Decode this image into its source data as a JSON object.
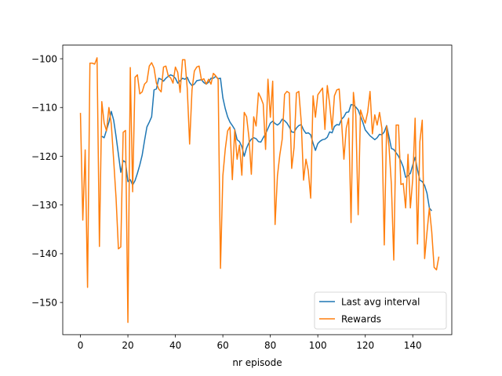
{
  "chart_data": {
    "type": "line",
    "title": "",
    "xlabel": "nr episode",
    "ylabel": "",
    "xlim": [
      -7.45,
      156.45
    ],
    "ylim": [
      -156.6,
      -97.2
    ],
    "xticks": [
      0,
      20,
      40,
      60,
      80,
      100,
      120,
      140
    ],
    "yticks": [
      -150,
      -140,
      -130,
      -120,
      -110,
      -100
    ],
    "grid": false,
    "legend_position": "lower-right",
    "series": [
      {
        "name": "Last avg interval",
        "color": "#1f77b4",
        "x_start": 9,
        "values": [
          -115.9,
          -116.2,
          -114.6,
          -113.0,
          -110.8,
          -112.6,
          -115.9,
          -119.6,
          -123.3,
          -120.9,
          -121.2,
          -125.2,
          -124.8,
          -125.9,
          -125.0,
          -123.5,
          -121.8,
          -119.8,
          -116.8,
          -114.0,
          -113.0,
          -111.9,
          -106.4,
          -106.2,
          -104.0,
          -104.2,
          -104.6,
          -104.0,
          -103.6,
          -103.3,
          -103.5,
          -104.0,
          -105.0,
          -104.5,
          -104.0,
          -104.2,
          -103.8,
          -104.9,
          -105.5,
          -105.2,
          -104.5,
          -104.4,
          -104.3,
          -104.9,
          -105.2,
          -104.8,
          -104.0,
          -104.0,
          -103.6,
          -104.1,
          -104.0,
          -108.0,
          -110.2,
          -111.9,
          -113.0,
          -113.7,
          -114.5,
          -116.6,
          -117.0,
          -118.0,
          -120.0,
          -118.3,
          -117.2,
          -116.5,
          -116.2,
          -116.4,
          -117.0,
          -117.1,
          -116.2,
          -115.4,
          -114.3,
          -113.2,
          -112.8,
          -113.3,
          -113.6,
          -113.2,
          -112.4,
          -112.7,
          -113.2,
          -114.0,
          -115.0,
          -115.1,
          -114.2,
          -113.7,
          -113.5,
          -114.6,
          -115.3,
          -115.2,
          -115.6,
          -117.3,
          -118.8,
          -117.4,
          -116.9,
          -116.6,
          -116.5,
          -116.1,
          -115.0,
          -115.2,
          -113.9,
          -113.5,
          -113.6,
          -112.4,
          -111.9,
          -111.0,
          -110.9,
          -109.4,
          -109.5,
          -109.9,
          -110.5,
          -111.8,
          -113.1,
          -114.6,
          -115.2,
          -115.8,
          -116.2,
          -116.6,
          -116.2,
          -115.5,
          -115.6,
          -115.0,
          -113.7,
          -116.0,
          -118.4,
          -118.6,
          -119.3,
          -120.0,
          -121.0,
          -122.2,
          -124.3,
          -124.0,
          -123.5,
          -121.8,
          -120.2,
          -122.8,
          -124.9,
          -125.2,
          -126.0,
          -127.6,
          -130.6,
          -131.2
        ]
      },
      {
        "name": "Rewards",
        "color": "#ff7f0e",
        "x_start": 0,
        "values": [
          -111.1,
          -133.1,
          -118.7,
          -146.9,
          -100.9,
          -100.9,
          -101.1,
          -99.8,
          -138.5,
          -108.8,
          -113.2,
          -114.8,
          -110.0,
          -113.4,
          -120.8,
          -128.5,
          -139.0,
          -138.6,
          -115.1,
          -114.7,
          -154.1,
          -101.8,
          -127.3,
          -103.8,
          -103.3,
          -107.2,
          -106.8,
          -105.2,
          -104.7,
          -101.5,
          -100.8,
          -101.9,
          -105.0,
          -106.2,
          -106.8,
          -101.7,
          -101.5,
          -103.5,
          -103.9,
          -105.0,
          -101.7,
          -102.8,
          -106.9,
          -100.2,
          -100.2,
          -106.1,
          -117.5,
          -106.4,
          -102.5,
          -101.7,
          -101.5,
          -104.4,
          -104.1,
          -105.2,
          -104.2,
          -105.2,
          -103.0,
          -103.5,
          -104.2,
          -143.0,
          -124.0,
          -118.6,
          -114.8,
          -114.0,
          -124.8,
          -114.6,
          -120.6,
          -117.7,
          -123.9,
          -111.0,
          -111.9,
          -116.2,
          -123.7,
          -111.9,
          -113.8,
          -107.0,
          -108.0,
          -109.3,
          -118.6,
          -104.2,
          -112.0,
          -104.6,
          -134.0,
          -124.0,
          -119.7,
          -116.5,
          -107.3,
          -106.7,
          -107.0,
          -122.5,
          -118.2,
          -107.0,
          -106.7,
          -112.8,
          -124.9,
          -120.6,
          -123.0,
          -128.6,
          -107.6,
          -112.0,
          -107.4,
          -106.7,
          -106.0,
          -114.5,
          -105.5,
          -109.3,
          -114.5,
          -107.6,
          -106.4,
          -106.2,
          -112.8,
          -120.6,
          -114.2,
          -112.2,
          -133.6,
          -106.9,
          -111.5,
          -132.0,
          -110.5,
          -112.0,
          -113.2,
          -111.0,
          -106.7,
          -115.4,
          -111.5,
          -113.6,
          -111.0,
          -114.3,
          -138.2,
          -113.8,
          -118.0,
          -125.8,
          -141.3,
          -113.6,
          -113.6,
          -125.8,
          -125.6,
          -130.6,
          -119.6,
          -130.6,
          -124.6,
          -112.2,
          -138.0,
          -117.0,
          -112.6,
          -141.0,
          -135.6,
          -130.6,
          -135.5,
          -142.8,
          -143.3,
          -140.6
        ]
      }
    ]
  }
}
